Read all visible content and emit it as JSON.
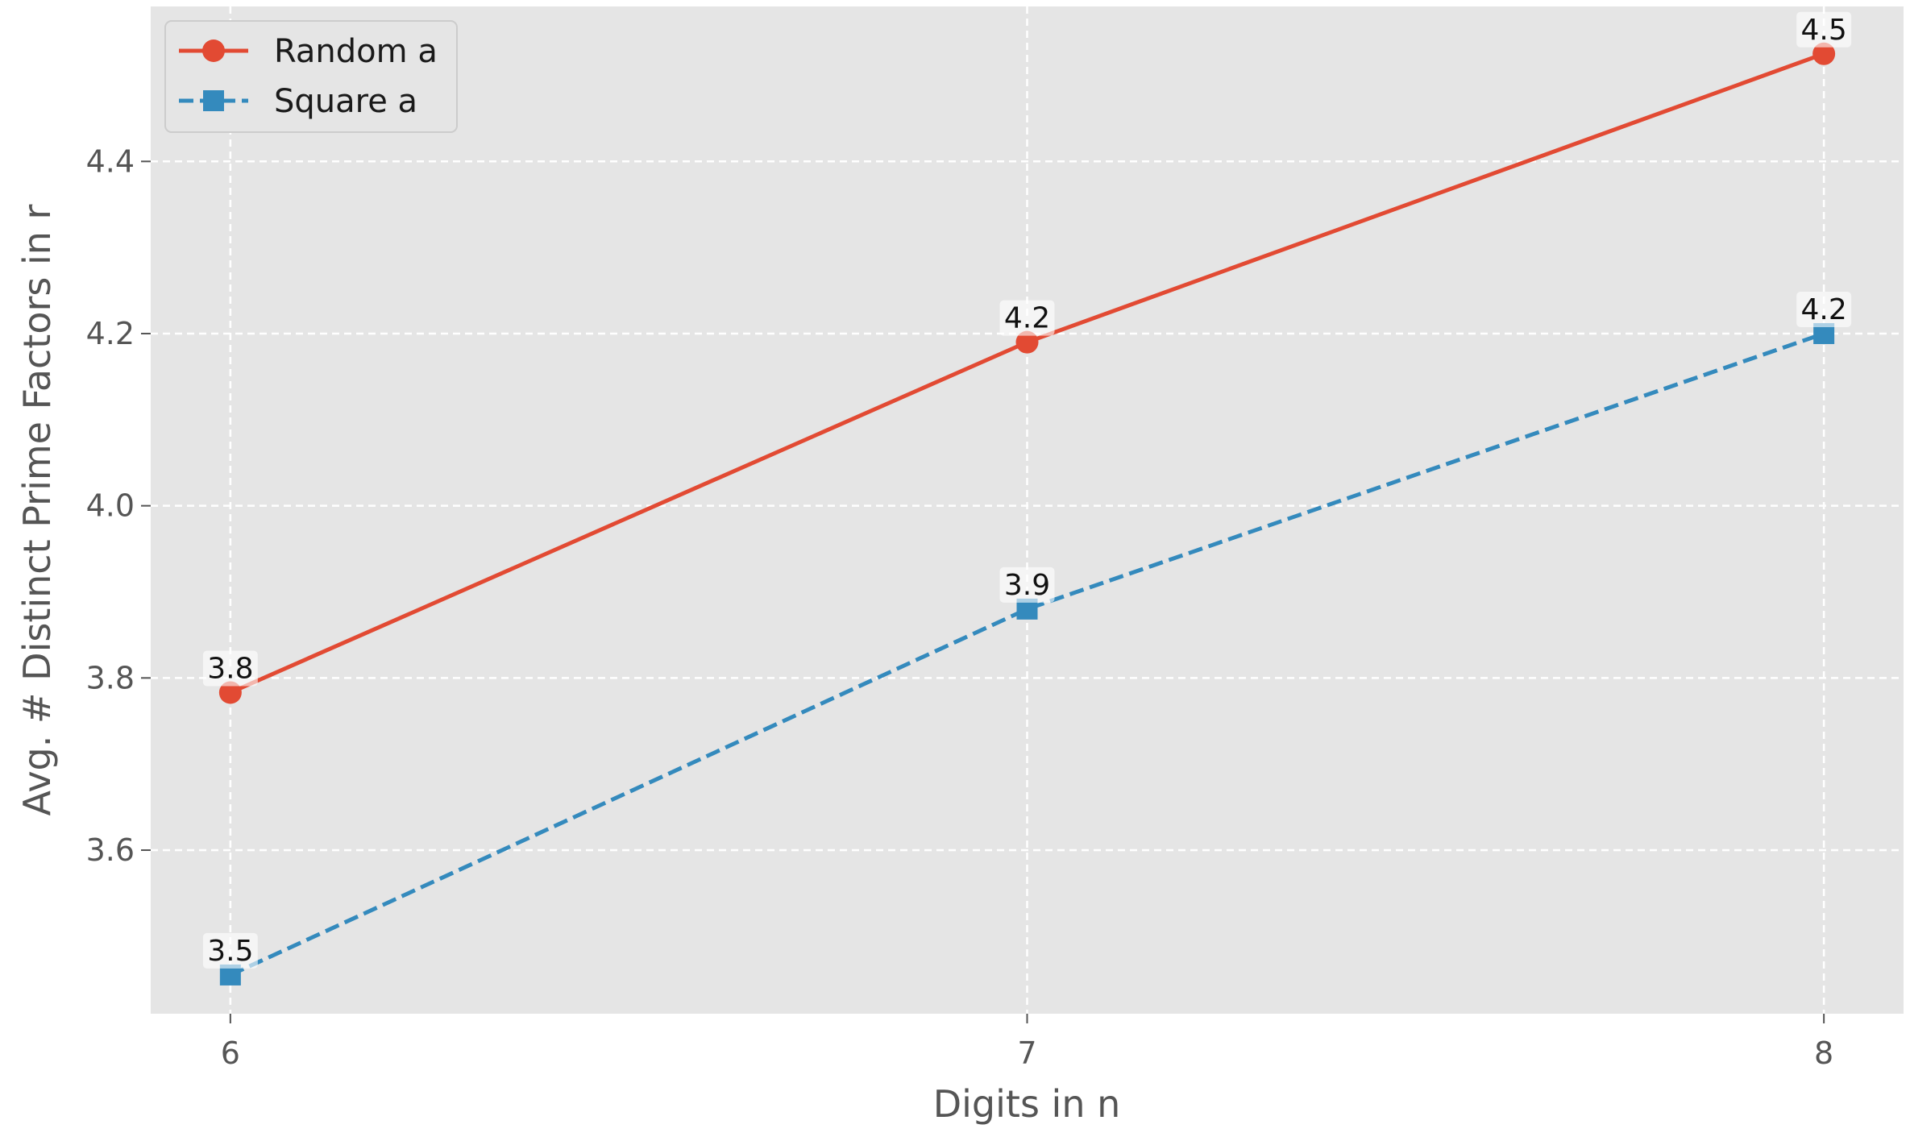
{
  "chart_data": {
    "type": "line",
    "xlabel": "Digits in n",
    "ylabel": "Avg. # Distinct Prime Factors in r",
    "x": [
      6,
      7,
      8
    ],
    "xlim": [
      5.9,
      8.1
    ],
    "ylim": [
      3.41,
      4.58
    ],
    "xticks": [
      "6",
      "7",
      "8"
    ],
    "yticks": [
      3.6,
      3.8,
      4.0,
      4.2,
      4.4
    ],
    "ytick_labels": [
      "3.6",
      "3.8",
      "4.0",
      "4.2",
      "4.4"
    ],
    "grid": true,
    "legend_position": "top-left",
    "background": "#e5e5e5",
    "series": [
      {
        "name": "Random a",
        "values": [
          3.783,
          4.19,
          4.525
        ],
        "labels": [
          "3.8",
          "4.2",
          "4.5"
        ],
        "color": "#e24a33",
        "linestyle": "solid",
        "marker": "circle"
      },
      {
        "name": "Square a",
        "values": [
          3.455,
          3.88,
          4.2
        ],
        "labels": [
          "3.5",
          "3.9",
          "4.2"
        ],
        "color": "#348abd",
        "linestyle": "dashed",
        "marker": "square"
      }
    ]
  }
}
